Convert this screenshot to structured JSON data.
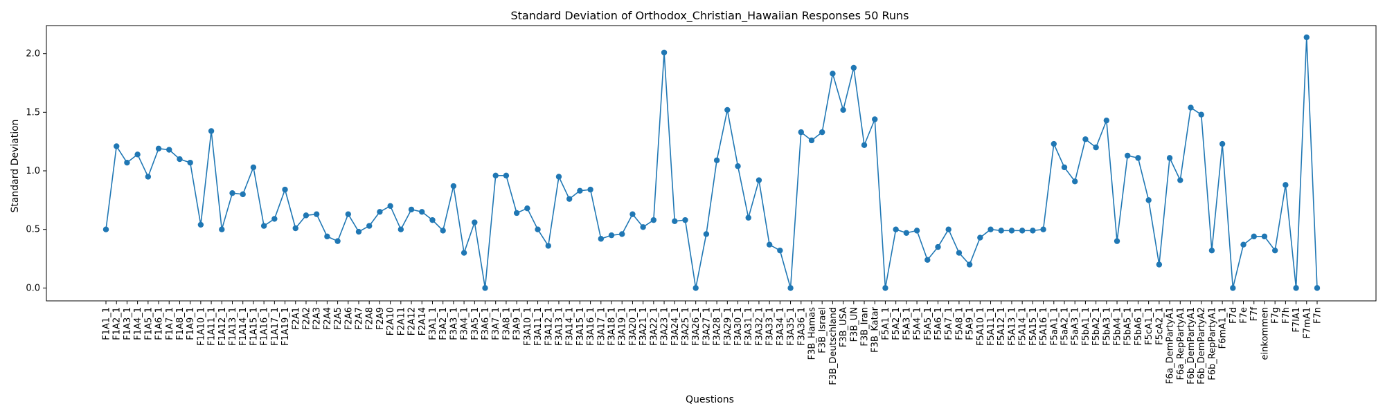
{
  "chart_data": {
    "type": "line",
    "title": "Standard Deviation of Orthodox_Christian_Hawaiian Responses 50 Runs",
    "xlabel": "Questions",
    "ylabel": "Standard Deviation",
    "ylim": [
      -0.11,
      2.24
    ],
    "yticks": [
      0.0,
      0.5,
      1.0,
      1.5,
      2.0
    ],
    "ytick_labels": [
      "0.0",
      "0.5",
      "1.0",
      "1.5",
      "2.0"
    ],
    "grid": false,
    "color": "#1f77b4",
    "marker": "circle",
    "categories": [
      "F1A1_1",
      "F1A2_1",
      "F1A3_1",
      "F1A4_1",
      "F1A5_1",
      "F1A6_1",
      "F1A7_1",
      "F1A8_1",
      "F1A9_1",
      "F1A10_1",
      "F1A11_1",
      "F1A12_1",
      "F1A13_1",
      "F1A14_1",
      "F1A15_1",
      "F1A16_1",
      "F1A17_1",
      "F1A19_1",
      "F2A1",
      "F2A2",
      "F2A3",
      "F2A4",
      "F2A5",
      "F2A6",
      "F2A7",
      "F2A8",
      "F2A9",
      "F2A10",
      "F2A11",
      "F2A12",
      "F2A14",
      "F3A1_1",
      "F3A2_1",
      "F3A3_1",
      "F3A4_1",
      "F3A5_1",
      "F3A6_1",
      "F3A7_1",
      "F3A8_1",
      "F3A9_1",
      "F3A10_1",
      "F3A11_1",
      "F3A12_1",
      "F3A13_1",
      "F3A14_1",
      "F3A15_1",
      "F3A16_1",
      "F3A17_1",
      "F3A18_1",
      "F3A19_1",
      "F3A20_1",
      "F3A21_1",
      "F3A22_1",
      "F3A23_1",
      "F3A24_1",
      "F3A25_1",
      "F3A26_1",
      "F3A27_1",
      "F3A28_1",
      "F3A29_1",
      "F3A30_1",
      "F3A31_1",
      "F3A32_1",
      "F3A33_1",
      "F3A34_1",
      "F3A35_1",
      "F3A36_1",
      "F3B_Hamas",
      "F3B_Israel",
      "F3B_Deutschland",
      "F3B_USA",
      "F3B_UN",
      "F3B_Iran",
      "F3B_Katar",
      "F5A1_1",
      "F5A2_1",
      "F5A3_1",
      "F5A4_1",
      "F5A5_1",
      "F5A6_1",
      "F5A7_1",
      "F5A8_1",
      "F5A9_1",
      "F5A10_1",
      "F5A11_1",
      "F5A12_1",
      "F5A13_1",
      "F5A14_1",
      "F5A15_1",
      "F5A16_1",
      "F5aA1_1",
      "F5aA2_1",
      "F5aA3_1",
      "F5bA1_1",
      "F5bA2_1",
      "F5bA3_1",
      "F5bA4_1",
      "F5bA5_1",
      "F5bA6_1",
      "F5cA1_1",
      "F5cA2_1",
      "F6a_DemPartyA1",
      "F6a_RepPartyA1",
      "F6b_DemPartyA1",
      "F6b_DemPartyA2",
      "F6b_RepPartyA1",
      "F6mA1_1",
      "F7d",
      "F7e",
      "F7f",
      "einkommen",
      "F7g",
      "F7h",
      "F7lA1",
      "F7mA1",
      "F7n"
    ],
    "values": [
      0.5,
      1.21,
      1.07,
      1.14,
      0.95,
      1.19,
      1.18,
      1.1,
      1.07,
      0.54,
      1.34,
      0.5,
      0.81,
      0.8,
      1.03,
      0.53,
      0.59,
      0.84,
      0.51,
      0.62,
      0.63,
      0.44,
      0.4,
      0.63,
      0.48,
      0.53,
      0.65,
      0.7,
      0.5,
      0.67,
      0.65,
      0.58,
      0.49,
      0.87,
      0.3,
      0.56,
      0.0,
      0.96,
      0.96,
      0.64,
      0.68,
      0.5,
      0.36,
      0.95,
      0.76,
      0.83,
      0.84,
      0.42,
      0.45,
      0.46,
      0.63,
      0.52,
      0.58,
      2.01,
      0.57,
      0.58,
      0.0,
      0.46,
      1.09,
      1.52,
      1.04,
      0.6,
      0.92,
      0.37,
      0.32,
      0.0,
      1.33,
      1.26,
      1.33,
      1.83,
      1.52,
      1.88,
      1.22,
      1.44,
      0.0,
      0.5,
      0.47,
      0.49,
      0.24,
      0.35,
      0.5,
      0.3,
      0.2,
      0.43,
      0.5,
      0.49,
      0.49,
      0.49,
      0.49,
      0.5,
      1.23,
      1.03,
      0.91,
      1.27,
      1.2,
      1.43,
      0.4,
      1.13,
      1.11,
      0.75,
      0.2,
      1.11,
      0.92,
      1.54,
      1.48,
      0.32,
      1.23,
      0.0,
      0.37,
      0.44,
      0.44,
      0.32,
      0.88,
      0.0,
      2.14,
      0.0
    ]
  }
}
